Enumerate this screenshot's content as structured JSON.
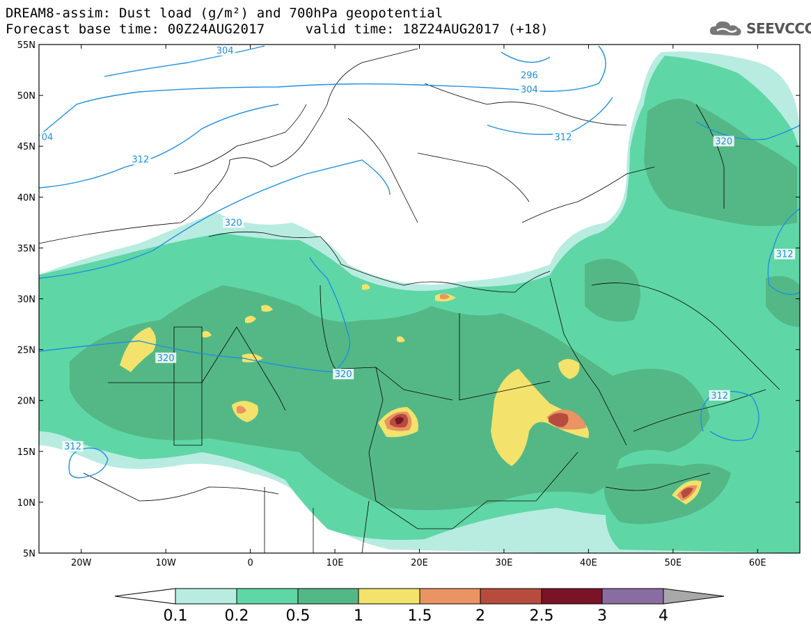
{
  "title": {
    "line1": "DREAM8-assim: Dust load (g/m²) and 700hPa geopotential",
    "line2": "Forecast base time: 00Z24AUG2017     valid time: 18Z24AUG2017 (+18)"
  },
  "logo": {
    "text": "SEEVCCC",
    "icon": "cloud-icon"
  },
  "axes": {
    "lat_labels": [
      "55N",
      "50N",
      "45N",
      "40N",
      "35N",
      "30N",
      "25N",
      "20N",
      "15N",
      "10N",
      "5N"
    ],
    "lon_labels": [
      "20W",
      "10W",
      "0",
      "10E",
      "20E",
      "30E",
      "40E",
      "50E",
      "60E"
    ],
    "lat_values": [
      55,
      50,
      45,
      40,
      35,
      30,
      25,
      20,
      15,
      10,
      5
    ],
    "lon_values": [
      -20,
      -10,
      0,
      10,
      20,
      30,
      40,
      50,
      60
    ],
    "lon_range": [
      -25,
      65
    ],
    "lat_range": [
      5,
      55
    ]
  },
  "contour_labels": [
    {
      "text": "304",
      "lon": -3,
      "lat": 55.2
    },
    {
      "text": "296",
      "lon": 33,
      "lat": 51.9
    },
    {
      "text": "304",
      "lon": 33,
      "lat": 50.5
    },
    {
      "text": "04",
      "lon": -24.5,
      "lat": 45.8
    },
    {
      "text": "312",
      "lon": -13,
      "lat": 43.6
    },
    {
      "text": "312",
      "lon": 37,
      "lat": 45.8
    },
    {
      "text": "320",
      "lon": 56,
      "lat": 45.4
    },
    {
      "text": "320",
      "lon": -2,
      "lat": 37.4
    },
    {
      "text": "320",
      "lon": -10,
      "lat": 24.1
    },
    {
      "text": "320",
      "lon": 11,
      "lat": 22.5
    },
    {
      "text": "312",
      "lon": 55.5,
      "lat": 20.4
    },
    {
      "text": "312",
      "lon": 63.2,
      "lat": 34.3
    },
    {
      "text": "312",
      "lon": -21,
      "lat": 15.4
    }
  ],
  "dust_colors": {
    "0.1-0.2": "#b8ece0",
    "0.2-0.5": "#5fd6a6",
    "0.5-1": "#54b886",
    "1-1.5": "#f3e26b",
    "1.5-2": "#ea9363",
    "2-2.5": "#b64c3e",
    "2.5-3": "#7a1326",
    "3-4": "#8a6da0",
    "over": "#a8a8a8",
    "contour": "#1e8fe0"
  },
  "legend": {
    "labels": [
      "0.1",
      "0.2",
      "0.5",
      "1",
      "1.5",
      "2",
      "2.5",
      "3",
      "4"
    ]
  }
}
